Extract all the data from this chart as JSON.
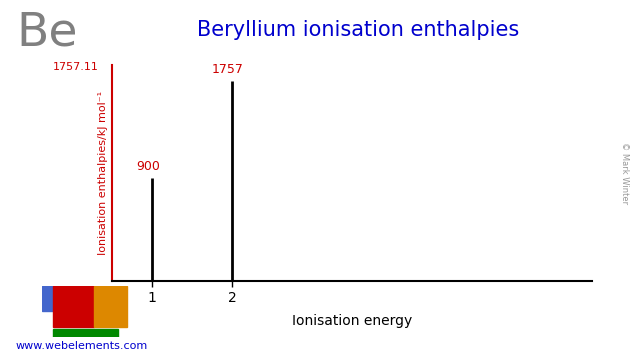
{
  "title": "Beryllium ionisation enthalpies",
  "element_symbol": "Be",
  "ylabel": "Ionisation enthalpies/kJ mol⁻¹",
  "xlabel": "Ionisation energy",
  "ionisation_numbers": [
    1,
    2
  ],
  "ionisation_values": [
    900,
    1757
  ],
  "value_labels": [
    "900",
    "1757"
  ],
  "ymax_label": "1757.11",
  "y_axis_max": 1757.11,
  "bar_color": "#000000",
  "axis_color": "#cc0000",
  "title_color": "#0000cd",
  "element_color": "#808080",
  "website": "www.webelements.com",
  "website_color": "#0000cd",
  "copyright": "© Mark Winter",
  "bg_color": "#ffffff",
  "pt_blue": "#4466cc",
  "pt_red": "#cc0000",
  "pt_orange": "#dd8800",
  "pt_green": "#008800"
}
